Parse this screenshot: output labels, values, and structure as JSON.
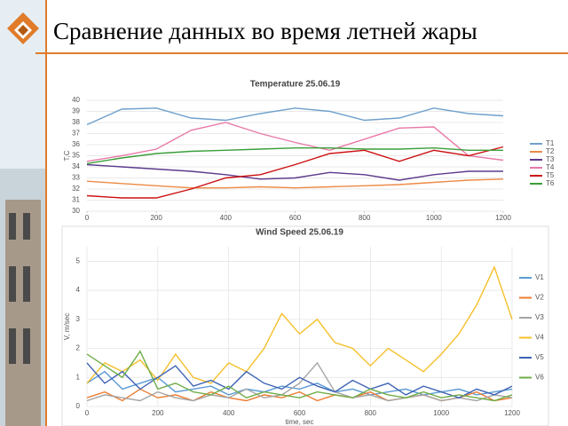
{
  "header": {
    "title": "Сравнение данных во время летней жары"
  },
  "chart_data": [
    {
      "type": "line",
      "title": "Temperature 25.06.19",
      "y_label": "T,C",
      "x": [
        0,
        100,
        200,
        300,
        400,
        500,
        600,
        700,
        800,
        900,
        1000,
        1100,
        1200
      ],
      "xlim": [
        0,
        1200
      ],
      "xticks": [
        0,
        200,
        400,
        600,
        800,
        1000,
        1200
      ],
      "ylim": [
        30,
        40
      ],
      "yticks": [
        30,
        31,
        32,
        33,
        34,
        35,
        36,
        37,
        38,
        39,
        40
      ],
      "grid": "y",
      "legend": "right",
      "series": [
        {
          "name": "T1",
          "color": "#6fa0cc",
          "values": [
            37.8,
            39.2,
            39.3,
            38.4,
            38.2,
            38.8,
            39.3,
            39.0,
            38.2,
            38.4,
            39.3,
            38.8,
            38.6
          ]
        },
        {
          "name": "T2",
          "color": "#ed8a45",
          "values": [
            32.7,
            32.5,
            32.3,
            32.1,
            32.1,
            32.2,
            32.1,
            32.2,
            32.3,
            32.4,
            32.6,
            32.8,
            32.9
          ]
        },
        {
          "name": "T3",
          "color": "#5b3a8c",
          "values": [
            34.2,
            34.0,
            33.8,
            33.6,
            33.3,
            32.9,
            33.0,
            33.5,
            33.3,
            32.8,
            33.3,
            33.6,
            33.6
          ]
        },
        {
          "name": "T4",
          "color": "#e879a8",
          "values": [
            34.5,
            35.0,
            35.6,
            37.3,
            38.0,
            37.0,
            36.2,
            35.5,
            36.5,
            37.5,
            37.6,
            35.0,
            34.6
          ]
        },
        {
          "name": "T5",
          "color": "#cc1010",
          "values": [
            31.4,
            31.2,
            31.2,
            32.0,
            33.0,
            33.3,
            34.2,
            35.2,
            35.5,
            34.5,
            35.5,
            35.0,
            35.8
          ]
        },
        {
          "name": "T6",
          "color": "#3a9e3a",
          "values": [
            34.3,
            34.8,
            35.2,
            35.4,
            35.5,
            35.6,
            35.7,
            35.7,
            35.6,
            35.6,
            35.7,
            35.5,
            35.5
          ]
        }
      ]
    },
    {
      "type": "line",
      "title": "Wind Speed 25.06.19",
      "y_label": "V, m/sec",
      "x_label": "time, sec",
      "x": [
        0,
        50,
        100,
        150,
        200,
        250,
        300,
        350,
        400,
        450,
        500,
        550,
        600,
        650,
        700,
        750,
        800,
        850,
        900,
        950,
        1000,
        1050,
        1100,
        1150,
        1200
      ],
      "xlim": [
        0,
        1200
      ],
      "xticks": [
        0,
        200,
        400,
        600,
        800,
        1000,
        1200
      ],
      "ylim": [
        0,
        5.5
      ],
      "yticks": [
        0,
        1,
        2,
        3,
        4,
        5
      ],
      "grid": "both",
      "legend": "right",
      "series": [
        {
          "name": "V1",
          "color": "#5b9bd5",
          "values": [
            0.8,
            1.2,
            0.6,
            0.8,
            1.0,
            0.5,
            0.6,
            0.7,
            0.4,
            0.6,
            0.5,
            0.7,
            0.6,
            0.8,
            0.5,
            0.6,
            0.4,
            0.5,
            0.6,
            0.4,
            0.5,
            0.6,
            0.4,
            0.5,
            0.6
          ]
        },
        {
          "name": "V2",
          "color": "#ed7d31",
          "values": [
            0.3,
            0.5,
            0.2,
            0.6,
            0.3,
            0.4,
            0.2,
            0.5,
            0.3,
            0.2,
            0.4,
            0.3,
            0.5,
            0.2,
            0.4,
            0.3,
            0.5,
            0.2,
            0.3,
            0.4,
            0.2,
            0.3,
            0.5,
            0.2,
            0.3
          ]
        },
        {
          "name": "V3",
          "color": "#a5a5a5",
          "values": [
            0.2,
            0.4,
            0.3,
            0.2,
            0.5,
            0.3,
            0.2,
            0.4,
            0.3,
            0.6,
            0.3,
            0.4,
            0.8,
            1.5,
            0.5,
            0.3,
            0.4,
            0.2,
            0.3,
            0.4,
            0.2,
            0.3,
            0.2,
            0.4,
            0.3
          ]
        },
        {
          "name": "V4",
          "color": "#f5c02a",
          "values": [
            0.8,
            1.5,
            1.2,
            1.6,
            0.9,
            1.8,
            1.0,
            0.8,
            1.5,
            1.2,
            2.0,
            3.2,
            2.5,
            3.0,
            2.2,
            2.0,
            1.4,
            2.0,
            1.6,
            1.2,
            1.8,
            2.5,
            3.5,
            4.8,
            3.0
          ]
        },
        {
          "name": "V5",
          "color": "#3f63b5",
          "values": [
            1.5,
            0.8,
            1.2,
            0.6,
            1.0,
            1.4,
            0.7,
            0.9,
            0.6,
            1.2,
            0.8,
            0.6,
            1.0,
            0.7,
            0.5,
            0.9,
            0.6,
            0.8,
            0.4,
            0.7,
            0.5,
            0.3,
            0.6,
            0.4,
            0.7
          ]
        },
        {
          "name": "V6",
          "color": "#70ad47",
          "values": [
            1.8,
            1.4,
            1.0,
            1.9,
            0.6,
            0.8,
            0.5,
            0.4,
            0.7,
            0.3,
            0.5,
            0.4,
            0.3,
            0.5,
            0.4,
            0.3,
            0.6,
            0.4,
            0.3,
            0.5,
            0.3,
            0.4,
            0.3,
            0.2,
            0.4
          ]
        }
      ]
    }
  ]
}
